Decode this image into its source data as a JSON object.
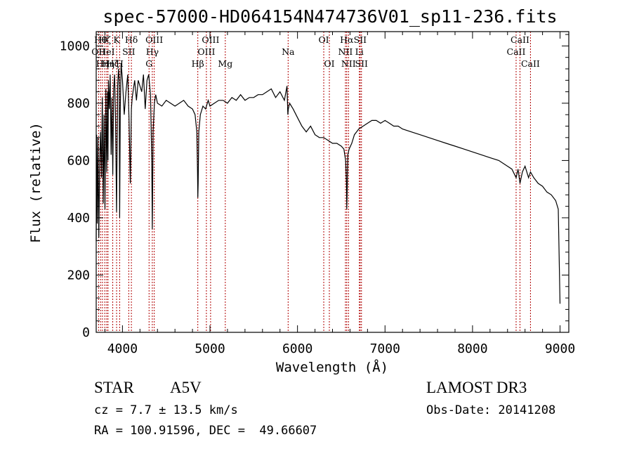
{
  "chart_data": {
    "type": "line",
    "title": "spec-57000-HD064154N474736V01_sp11-236.fits",
    "xlabel": "Wavelength (Å)",
    "ylabel": "Flux (relative)",
    "xlim": [
      3700,
      9100
    ],
    "ylim": [
      0,
      1050
    ],
    "x_ticks": [
      4000,
      5000,
      6000,
      7000,
      8000,
      9000
    ],
    "y_ticks": [
      0,
      200,
      400,
      600,
      800,
      1000
    ],
    "spectrum": {
      "name": "flux",
      "x": [
        3700,
        3705,
        3712,
        3720,
        3730,
        3740,
        3750,
        3760,
        3770,
        3780,
        3790,
        3800,
        3810,
        3820,
        3830,
        3835,
        3840,
        3850,
        3860,
        3870,
        3880,
        3889,
        3900,
        3910,
        3920,
        3933,
        3945,
        3955,
        3962,
        3968,
        3975,
        3985,
        4000,
        4020,
        4040,
        4060,
        4075,
        4090,
        4102,
        4112,
        4125,
        4140,
        4160,
        4180,
        4200,
        4220,
        4240,
        4260,
        4280,
        4300,
        4320,
        4335,
        4341,
        4350,
        4365,
        4380,
        4400,
        4450,
        4500,
        4550,
        4600,
        4650,
        4700,
        4750,
        4800,
        4830,
        4850,
        4858,
        4861,
        4865,
        4872,
        4890,
        4920,
        4950,
        4980,
        5000,
        5050,
        5100,
        5150,
        5200,
        5250,
        5300,
        5350,
        5400,
        5450,
        5500,
        5550,
        5600,
        5650,
        5700,
        5750,
        5800,
        5850,
        5880,
        5890,
        5895,
        5910,
        5950,
        6000,
        6050,
        6100,
        6150,
        6200,
        6250,
        6300,
        6350,
        6400,
        6450,
        6500,
        6530,
        6550,
        6560,
        6563,
        6567,
        6575,
        6590,
        6620,
        6650,
        6700,
        6750,
        6800,
        6850,
        6900,
        6950,
        7000,
        7050,
        7100,
        7150,
        7200,
        7300,
        7400,
        7500,
        7600,
        7700,
        7800,
        7900,
        8000,
        8100,
        8200,
        8300,
        8400,
        8450,
        8498,
        8520,
        8542,
        8570,
        8600,
        8640,
        8662,
        8700,
        8750,
        8800,
        8850,
        8900,
        8950,
        8980,
        9000
      ],
      "y": [
        320,
        690,
        380,
        680,
        330,
        600,
        700,
        540,
        820,
        450,
        760,
        430,
        850,
        560,
        840,
        600,
        880,
        780,
        900,
        620,
        820,
        550,
        850,
        900,
        760,
        420,
        860,
        920,
        880,
        400,
        780,
        940,
        880,
        760,
        840,
        900,
        750,
        520,
        780,
        820,
        850,
        880,
        810,
        880,
        860,
        840,
        900,
        780,
        880,
        900,
        830,
        600,
        360,
        700,
        800,
        830,
        800,
        790,
        810,
        800,
        790,
        800,
        810,
        790,
        780,
        760,
        700,
        560,
        470,
        520,
        700,
        760,
        790,
        780,
        810,
        790,
        800,
        810,
        810,
        800,
        820,
        810,
        830,
        810,
        820,
        820,
        830,
        830,
        840,
        850,
        820,
        840,
        810,
        860,
        760,
        780,
        800,
        780,
        750,
        720,
        700,
        720,
        690,
        680,
        680,
        670,
        660,
        660,
        650,
        640,
        600,
        520,
        430,
        480,
        620,
        640,
        660,
        690,
        710,
        720,
        730,
        740,
        740,
        730,
        740,
        730,
        720,
        720,
        710,
        700,
        690,
        680,
        670,
        660,
        650,
        640,
        630,
        620,
        610,
        600,
        580,
        570,
        540,
        570,
        520,
        560,
        580,
        540,
        560,
        540,
        520,
        510,
        490,
        480,
        460,
        430,
        100
      ]
    },
    "line_marks": [
      {
        "wavelength": 3727,
        "label": "OII",
        "row": 2
      },
      {
        "wavelength": 3750,
        "label": "Hθ",
        "row": 1
      },
      {
        "wavelength": 3771,
        "label": "Hη",
        "row": 3
      },
      {
        "wavelength": 3798,
        "label": "Hζ",
        "row": 1
      },
      {
        "wavelength": 3820,
        "label": "HeI",
        "row": 2
      },
      {
        "wavelength": 3835,
        "label": "Hη",
        "row": 3
      },
      {
        "wavelength": 3889,
        "label": "Hζ",
        "row": 3
      },
      {
        "wavelength": 3933,
        "label": "K",
        "row": 1
      },
      {
        "wavelength": 3968,
        "label": "H",
        "row": 3
      },
      {
        "wavelength": 4072,
        "label": "SII",
        "row": 2
      },
      {
        "wavelength": 4102,
        "label": "Hδ",
        "row": 1
      },
      {
        "wavelength": 4304,
        "label": "G",
        "row": 3
      },
      {
        "wavelength": 4341,
        "label": "Hγ",
        "row": 2
      },
      {
        "wavelength": 4363,
        "label": "OIII",
        "row": 1
      },
      {
        "wavelength": 4861,
        "label": "Hβ",
        "row": 3
      },
      {
        "wavelength": 4959,
        "label": "OIII",
        "row": 2
      },
      {
        "wavelength": 5007,
        "label": "OIII",
        "row": 1
      },
      {
        "wavelength": 5175,
        "label": "Mg",
        "row": 3
      },
      {
        "wavelength": 5893,
        "label": "Na",
        "row": 2
      },
      {
        "wavelength": 6300,
        "label": "OI",
        "row": 1
      },
      {
        "wavelength": 6364,
        "label": "OI",
        "row": 3
      },
      {
        "wavelength": 6548,
        "label": "NII",
        "row": 2
      },
      {
        "wavelength": 6563,
        "label": "Hα",
        "row": 1
      },
      {
        "wavelength": 6583,
        "label": "NII",
        "row": 3
      },
      {
        "wavelength": 6707,
        "label": "Li",
        "row": 2
      },
      {
        "wavelength": 6716,
        "label": "SII",
        "row": 1
      },
      {
        "wavelength": 6731,
        "label": "SII",
        "row": 3
      },
      {
        "wavelength": 8498,
        "label": "CaII",
        "row": 2
      },
      {
        "wavelength": 8542,
        "label": "CaII",
        "row": 1
      },
      {
        "wavelength": 8662,
        "label": "CaII",
        "row": 3
      }
    ]
  },
  "info": {
    "object_class": "STAR",
    "subclass": "A5V",
    "survey": "LAMOST DR3",
    "redshift": "cz = 7.7 ± 13.5 km/s",
    "obs_date": "Obs-Date: 20141208",
    "coords": "RA = 100.91596, DEC =  49.66607"
  },
  "colors": {
    "spectrum": "#000000",
    "line_marks": "#b00000",
    "axes": "#000000"
  }
}
